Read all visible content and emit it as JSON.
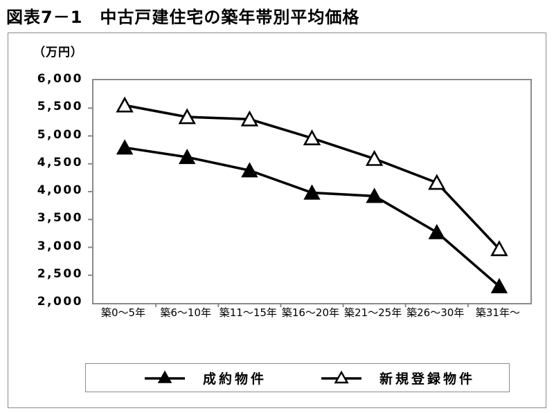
{
  "chart_data": {
    "type": "line",
    "title": "図表7－1　中古戸建住宅の築年帯別平均価格",
    "unit_label": "（万円）",
    "categories": [
      "築0～5年",
      "築6～10年",
      "築11～15年",
      "築16～20年",
      "築21～25年",
      "築26～30年",
      "築31年～"
    ],
    "series": [
      {
        "name": "成約物件",
        "marker": "filled-triangle",
        "color": "#000000",
        "values": [
          4790,
          4620,
          4380,
          3980,
          3920,
          3270,
          2300
        ]
      },
      {
        "name": "新規登録物件",
        "marker": "open-triangle",
        "color": "#000000",
        "values": [
          5550,
          5340,
          5300,
          4960,
          4590,
          4160,
          2970
        ]
      }
    ],
    "ylim": [
      2000,
      6000
    ],
    "ytick_step": 500,
    "ytick_labels": [
      "6,000",
      "5,500",
      "5,000",
      "4,500",
      "4,000",
      "3,500",
      "3,000",
      "2,500",
      "2,000"
    ],
    "grid": false,
    "legend_position": "bottom-box",
    "frame_color": "#8a8a8a",
    "line_color": "#000000"
  },
  "legend": {
    "items": [
      {
        "label": "成約物件",
        "marker": "filled-triangle"
      },
      {
        "label": "新規登録物件",
        "marker": "open-triangle"
      }
    ]
  }
}
